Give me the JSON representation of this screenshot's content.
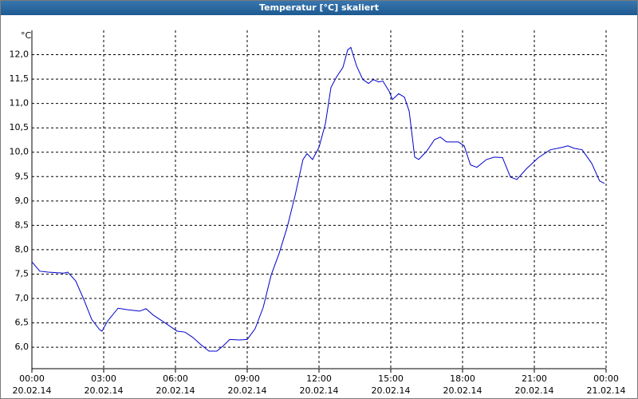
{
  "chart_data": {
    "type": "line",
    "title": "Temperatur [°C] skaliert",
    "y_unit": "°C",
    "x": [
      0,
      0.33,
      0.67,
      1.33,
      1.5,
      1.83,
      2.17,
      2.5,
      2.83,
      2.93,
      3.17,
      3.6,
      4.0,
      4.5,
      4.77,
      5.07,
      5.5,
      5.83,
      6.07,
      6.4,
      6.73,
      7.07,
      7.4,
      7.73,
      8.0,
      8.27,
      8.67,
      9.0,
      9.33,
      9.67,
      10.0,
      10.33,
      10.67,
      11.0,
      11.33,
      11.5,
      11.73,
      12.0,
      12.27,
      12.5,
      12.73,
      13.0,
      13.2,
      13.33,
      13.57,
      13.83,
      14.07,
      14.27,
      14.5,
      14.67,
      14.93,
      15.07,
      15.33,
      15.57,
      15.77,
      16.0,
      16.17,
      16.5,
      16.83,
      17.07,
      17.33,
      17.83,
      18.07,
      18.33,
      18.6,
      19.0,
      19.33,
      19.67,
      20.0,
      20.27,
      20.67,
      21.17,
      21.67,
      22.17,
      22.4,
      22.67,
      23.0,
      23.4,
      23.73,
      23.93
    ],
    "series": [
      {
        "name": "Temperatur",
        "color": "#0000cc",
        "values": [
          7.75,
          7.56,
          7.54,
          7.52,
          7.54,
          7.36,
          6.98,
          6.57,
          6.36,
          6.33,
          6.54,
          6.8,
          6.77,
          6.74,
          6.79,
          6.66,
          6.52,
          6.41,
          6.33,
          6.31,
          6.2,
          6.05,
          5.92,
          5.92,
          6.03,
          6.16,
          6.15,
          6.16,
          6.38,
          6.82,
          7.48,
          7.92,
          8.46,
          9.11,
          9.85,
          9.97,
          9.85,
          10.1,
          10.59,
          11.33,
          11.54,
          11.74,
          12.1,
          12.15,
          11.77,
          11.49,
          11.41,
          11.49,
          11.44,
          11.46,
          11.25,
          11.08,
          11.2,
          11.13,
          10.84,
          9.9,
          9.85,
          10.02,
          10.26,
          10.31,
          10.21,
          10.21,
          10.13,
          9.74,
          9.69,
          9.85,
          9.9,
          9.89,
          9.49,
          9.44,
          9.66,
          9.89,
          10.05,
          10.1,
          10.13,
          10.08,
          10.05,
          9.77,
          9.41,
          9.36
        ]
      }
    ],
    "xlim": [
      0,
      24
    ],
    "xticks": [
      {
        "value": 0,
        "label": "00:00",
        "date": "20.02.14"
      },
      {
        "value": 3,
        "label": "03:00",
        "date": "20.02.14"
      },
      {
        "value": 6,
        "label": "06:00",
        "date": "20.02.14"
      },
      {
        "value": 9,
        "label": "09:00",
        "date": "20.02.14"
      },
      {
        "value": 12,
        "label": "12:00",
        "date": "20.02.14"
      },
      {
        "value": 15,
        "label": "15:00",
        "date": "20.02.14"
      },
      {
        "value": 18,
        "label": "18:00",
        "date": "20.02.14"
      },
      {
        "value": 21,
        "label": "21:00",
        "date": "20.02.14"
      },
      {
        "value": 24,
        "label": "00:00",
        "date": "21.02.14"
      }
    ],
    "ylim": [
      5.56,
      12.5
    ],
    "yticks": [
      {
        "value": 6,
        "label": "6,0"
      },
      {
        "value": 6.5,
        "label": "6,5"
      },
      {
        "value": 7,
        "label": "7,0"
      },
      {
        "value": 7.5,
        "label": "7,5"
      },
      {
        "value": 8,
        "label": "8,0"
      },
      {
        "value": 8.5,
        "label": "8,5"
      },
      {
        "value": 9,
        "label": "9,0"
      },
      {
        "value": 9.5,
        "label": "9,5"
      },
      {
        "value": 10,
        "label": "10,0"
      },
      {
        "value": 10.5,
        "label": "10,5"
      },
      {
        "value": 11,
        "label": "11,0"
      },
      {
        "value": 11.5,
        "label": "11,5"
      },
      {
        "value": 12,
        "label": "12,0"
      }
    ],
    "grid": true
  }
}
